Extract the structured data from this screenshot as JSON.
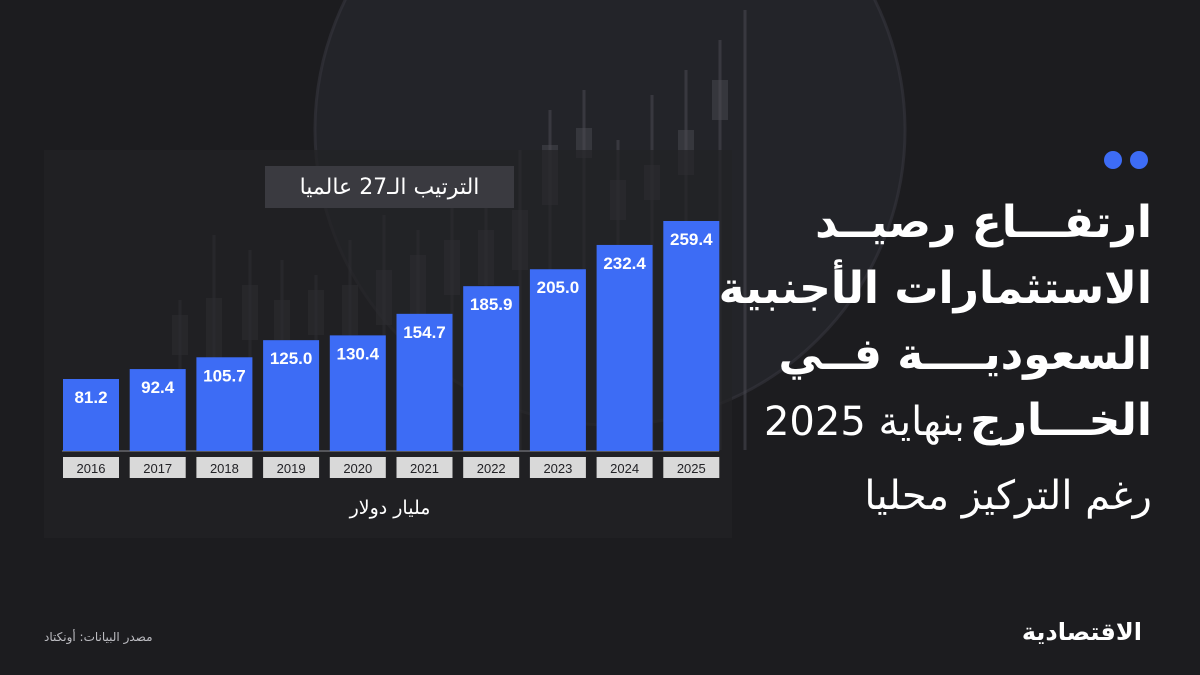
{
  "headline": {
    "line1": "ارتفـــاع رصيــد",
    "line2": "الاستثمارات الأجنبية",
    "line3": "السعوديــــة فــي",
    "line4_bold": "الخـــارج",
    "line4_rest": "بنهاية 2025",
    "line5": "رغم التركيز محليا"
  },
  "rank_badge": "الترتيب الـ27 عالميا",
  "unit_label": "مليار دولار",
  "source": "مصدر البيانات: أونكتاد",
  "logo": "الاقتصادية",
  "colors": {
    "bar": "#3d6cf5",
    "background": "#1c1c1f",
    "accent_dots": "#3d6cf5",
    "year_label_bg": "#d9d9d9"
  },
  "chart_data": {
    "type": "bar",
    "categories": [
      "2016",
      "2017",
      "2018",
      "2019",
      "2020",
      "2021",
      "2022",
      "2023",
      "2024",
      "2025"
    ],
    "values": [
      81.2,
      92.4,
      105.7,
      125.0,
      130.4,
      154.7,
      185.9,
      205.0,
      232.4,
      259.4
    ],
    "value_labels": [
      "81.2",
      "92.4",
      "105.7",
      "125.0",
      "130.4",
      "154.7",
      "185.9",
      "205.0",
      "232.4",
      "259.4"
    ],
    "title": "",
    "xlabel": "",
    "ylabel": "مليار دولار",
    "ylim": [
      0,
      259.4
    ],
    "grid": false,
    "legend": "none"
  }
}
